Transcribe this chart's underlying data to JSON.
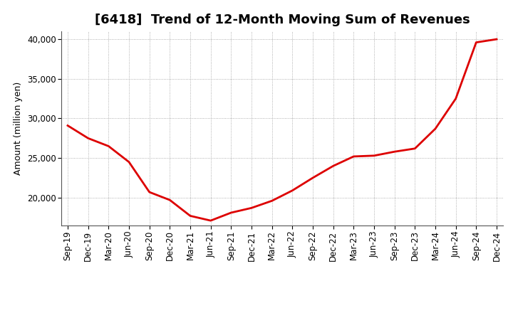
{
  "title": "[6418]  Trend of 12-Month Moving Sum of Revenues",
  "ylabel": "Amount (million yen)",
  "line_color": "#dd0000",
  "line_width": 2.0,
  "background_color": "#ffffff",
  "grid_color": "#999999",
  "ylim": [
    16500,
    41000
  ],
  "yticks": [
    20000,
    25000,
    30000,
    35000,
    40000
  ],
  "x_labels": [
    "Sep-19",
    "Dec-19",
    "Mar-20",
    "Jun-20",
    "Sep-20",
    "Dec-20",
    "Mar-21",
    "Jun-21",
    "Sep-21",
    "Dec-21",
    "Mar-22",
    "Jun-22",
    "Sep-22",
    "Dec-22",
    "Mar-23",
    "Jun-23",
    "Sep-23",
    "Dec-23",
    "Mar-24",
    "Jun-24",
    "Sep-24",
    "Dec-24"
  ],
  "values": [
    29100,
    27500,
    26500,
    24500,
    20700,
    19700,
    17700,
    17100,
    18100,
    18700,
    19600,
    20900,
    22500,
    24000,
    25200,
    25300,
    25800,
    26200,
    28700,
    32500,
    39600,
    40000
  ],
  "title_fontsize": 13,
  "ylabel_fontsize": 9,
  "tick_fontsize": 8.5
}
